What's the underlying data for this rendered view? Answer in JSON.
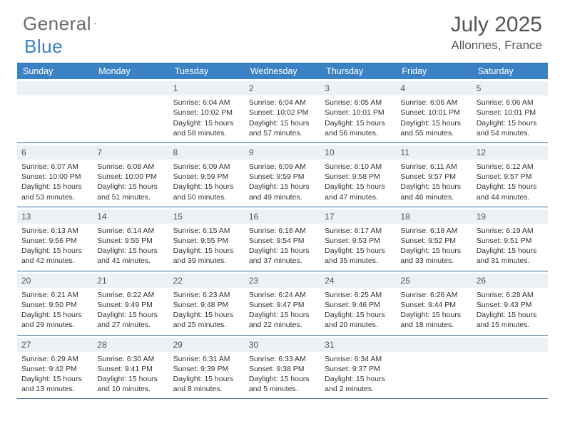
{
  "brand": {
    "part1": "General",
    "part2": "Blue"
  },
  "title": "July 2025",
  "location": "Allonnes, France",
  "colors": {
    "header_bg": "#3b82c4",
    "header_border": "#3567a0",
    "daynum_bg": "#eef1f3",
    "text": "#333333",
    "muted": "#555555"
  },
  "weekdays": [
    "Sunday",
    "Monday",
    "Tuesday",
    "Wednesday",
    "Thursday",
    "Friday",
    "Saturday"
  ],
  "weeks": [
    [
      {
        "n": "",
        "sunrise": "",
        "sunset": "",
        "daylight1": "",
        "daylight2": ""
      },
      {
        "n": "",
        "sunrise": "",
        "sunset": "",
        "daylight1": "",
        "daylight2": ""
      },
      {
        "n": "1",
        "sunrise": "Sunrise: 6:04 AM",
        "sunset": "Sunset: 10:02 PM",
        "daylight1": "Daylight: 15 hours",
        "daylight2": "and 58 minutes."
      },
      {
        "n": "2",
        "sunrise": "Sunrise: 6:04 AM",
        "sunset": "Sunset: 10:02 PM",
        "daylight1": "Daylight: 15 hours",
        "daylight2": "and 57 minutes."
      },
      {
        "n": "3",
        "sunrise": "Sunrise: 6:05 AM",
        "sunset": "Sunset: 10:01 PM",
        "daylight1": "Daylight: 15 hours",
        "daylight2": "and 56 minutes."
      },
      {
        "n": "4",
        "sunrise": "Sunrise: 6:06 AM",
        "sunset": "Sunset: 10:01 PM",
        "daylight1": "Daylight: 15 hours",
        "daylight2": "and 55 minutes."
      },
      {
        "n": "5",
        "sunrise": "Sunrise: 6:06 AM",
        "sunset": "Sunset: 10:01 PM",
        "daylight1": "Daylight: 15 hours",
        "daylight2": "and 54 minutes."
      }
    ],
    [
      {
        "n": "6",
        "sunrise": "Sunrise: 6:07 AM",
        "sunset": "Sunset: 10:00 PM",
        "daylight1": "Daylight: 15 hours",
        "daylight2": "and 53 minutes."
      },
      {
        "n": "7",
        "sunrise": "Sunrise: 6:08 AM",
        "sunset": "Sunset: 10:00 PM",
        "daylight1": "Daylight: 15 hours",
        "daylight2": "and 51 minutes."
      },
      {
        "n": "8",
        "sunrise": "Sunrise: 6:09 AM",
        "sunset": "Sunset: 9:59 PM",
        "daylight1": "Daylight: 15 hours",
        "daylight2": "and 50 minutes."
      },
      {
        "n": "9",
        "sunrise": "Sunrise: 6:09 AM",
        "sunset": "Sunset: 9:59 PM",
        "daylight1": "Daylight: 15 hours",
        "daylight2": "and 49 minutes."
      },
      {
        "n": "10",
        "sunrise": "Sunrise: 6:10 AM",
        "sunset": "Sunset: 9:58 PM",
        "daylight1": "Daylight: 15 hours",
        "daylight2": "and 47 minutes."
      },
      {
        "n": "11",
        "sunrise": "Sunrise: 6:11 AM",
        "sunset": "Sunset: 9:57 PM",
        "daylight1": "Daylight: 15 hours",
        "daylight2": "and 46 minutes."
      },
      {
        "n": "12",
        "sunrise": "Sunrise: 6:12 AM",
        "sunset": "Sunset: 9:57 PM",
        "daylight1": "Daylight: 15 hours",
        "daylight2": "and 44 minutes."
      }
    ],
    [
      {
        "n": "13",
        "sunrise": "Sunrise: 6:13 AM",
        "sunset": "Sunset: 9:56 PM",
        "daylight1": "Daylight: 15 hours",
        "daylight2": "and 42 minutes."
      },
      {
        "n": "14",
        "sunrise": "Sunrise: 6:14 AM",
        "sunset": "Sunset: 9:55 PM",
        "daylight1": "Daylight: 15 hours",
        "daylight2": "and 41 minutes."
      },
      {
        "n": "15",
        "sunrise": "Sunrise: 6:15 AM",
        "sunset": "Sunset: 9:55 PM",
        "daylight1": "Daylight: 15 hours",
        "daylight2": "and 39 minutes."
      },
      {
        "n": "16",
        "sunrise": "Sunrise: 6:16 AM",
        "sunset": "Sunset: 9:54 PM",
        "daylight1": "Daylight: 15 hours",
        "daylight2": "and 37 minutes."
      },
      {
        "n": "17",
        "sunrise": "Sunrise: 6:17 AM",
        "sunset": "Sunset: 9:53 PM",
        "daylight1": "Daylight: 15 hours",
        "daylight2": "and 35 minutes."
      },
      {
        "n": "18",
        "sunrise": "Sunrise: 6:18 AM",
        "sunset": "Sunset: 9:52 PM",
        "daylight1": "Daylight: 15 hours",
        "daylight2": "and 33 minutes."
      },
      {
        "n": "19",
        "sunrise": "Sunrise: 6:19 AM",
        "sunset": "Sunset: 9:51 PM",
        "daylight1": "Daylight: 15 hours",
        "daylight2": "and 31 minutes."
      }
    ],
    [
      {
        "n": "20",
        "sunrise": "Sunrise: 6:21 AM",
        "sunset": "Sunset: 9:50 PM",
        "daylight1": "Daylight: 15 hours",
        "daylight2": "and 29 minutes."
      },
      {
        "n": "21",
        "sunrise": "Sunrise: 6:22 AM",
        "sunset": "Sunset: 9:49 PM",
        "daylight1": "Daylight: 15 hours",
        "daylight2": "and 27 minutes."
      },
      {
        "n": "22",
        "sunrise": "Sunrise: 6:23 AM",
        "sunset": "Sunset: 9:48 PM",
        "daylight1": "Daylight: 15 hours",
        "daylight2": "and 25 minutes."
      },
      {
        "n": "23",
        "sunrise": "Sunrise: 6:24 AM",
        "sunset": "Sunset: 9:47 PM",
        "daylight1": "Daylight: 15 hours",
        "daylight2": "and 22 minutes."
      },
      {
        "n": "24",
        "sunrise": "Sunrise: 6:25 AM",
        "sunset": "Sunset: 9:46 PM",
        "daylight1": "Daylight: 15 hours",
        "daylight2": "and 20 minutes."
      },
      {
        "n": "25",
        "sunrise": "Sunrise: 6:26 AM",
        "sunset": "Sunset: 9:44 PM",
        "daylight1": "Daylight: 15 hours",
        "daylight2": "and 18 minutes."
      },
      {
        "n": "26",
        "sunrise": "Sunrise: 6:28 AM",
        "sunset": "Sunset: 9:43 PM",
        "daylight1": "Daylight: 15 hours",
        "daylight2": "and 15 minutes."
      }
    ],
    [
      {
        "n": "27",
        "sunrise": "Sunrise: 6:29 AM",
        "sunset": "Sunset: 9:42 PM",
        "daylight1": "Daylight: 15 hours",
        "daylight2": "and 13 minutes."
      },
      {
        "n": "28",
        "sunrise": "Sunrise: 6:30 AM",
        "sunset": "Sunset: 9:41 PM",
        "daylight1": "Daylight: 15 hours",
        "daylight2": "and 10 minutes."
      },
      {
        "n": "29",
        "sunrise": "Sunrise: 6:31 AM",
        "sunset": "Sunset: 9:39 PM",
        "daylight1": "Daylight: 15 hours",
        "daylight2": "and 8 minutes."
      },
      {
        "n": "30",
        "sunrise": "Sunrise: 6:33 AM",
        "sunset": "Sunset: 9:38 PM",
        "daylight1": "Daylight: 15 hours",
        "daylight2": "and 5 minutes."
      },
      {
        "n": "31",
        "sunrise": "Sunrise: 6:34 AM",
        "sunset": "Sunset: 9:37 PM",
        "daylight1": "Daylight: 15 hours",
        "daylight2": "and 2 minutes."
      },
      {
        "n": "",
        "sunrise": "",
        "sunset": "",
        "daylight1": "",
        "daylight2": ""
      },
      {
        "n": "",
        "sunrise": "",
        "sunset": "",
        "daylight1": "",
        "daylight2": ""
      }
    ]
  ]
}
